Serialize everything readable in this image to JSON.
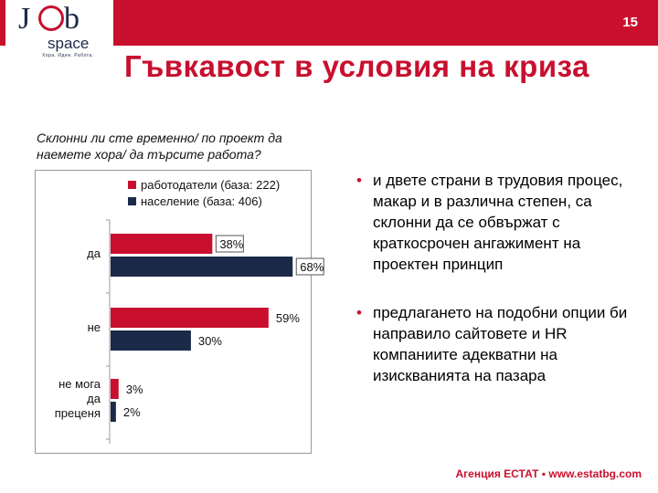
{
  "page": {
    "number": "15",
    "title": "Гъвкавост в условия на криза"
  },
  "logo": {
    "part_j": "J",
    "part_b": "b",
    "part_space": "space",
    "tagline": "Хора. Идеи. Работа."
  },
  "question": "Склонни ли сте временно/ по проект да наемете хора/ да търсите работа?",
  "bullets": [
    "и двете страни в трудовия процес, макар и в различна степен, са склонни да се обвържат с краткосрочен ангажимент на проектен принцип",
    "предлагането на подобни опции би направило сайтовете и HR компаниите адекватни на изискванията на пазара"
  ],
  "footer": "Агенция ЕСТАТ ▪ www.estatbg.com",
  "colors": {
    "accent": "#c8102e",
    "navy": "#1b2a49"
  },
  "chart_data": {
    "type": "bar",
    "orientation": "horizontal",
    "categories": [
      "да",
      "не",
      "не мога да преценя"
    ],
    "series": [
      {
        "name": "работодатели (база: 222)",
        "values": [
          38,
          59,
          3
        ],
        "color": "#c8102e"
      },
      {
        "name": "население (база: 406)",
        "values": [
          68,
          30,
          2
        ],
        "color": "#1b2a49"
      }
    ],
    "value_labels": [
      [
        "38%",
        "59%",
        "3%"
      ],
      [
        "68%",
        "30%",
        "2%"
      ]
    ],
    "xlim": [
      0,
      100
    ],
    "legend": "top",
    "grid": false
  }
}
